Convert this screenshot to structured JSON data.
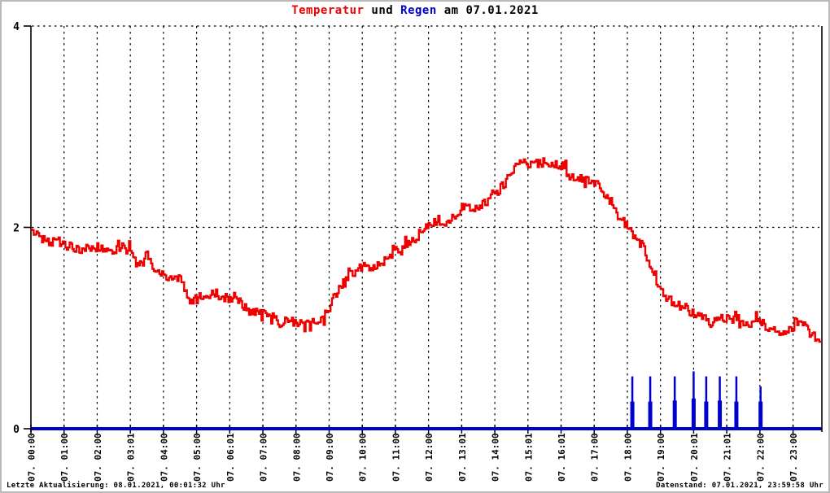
{
  "title": {
    "part_temperature": "Temperatur",
    "part_und": " und ",
    "part_rain": "Regen",
    "part_date": " am 07.01.2021"
  },
  "footer": {
    "last_update": "Letzte Aktualisierung: 08.01.2021, 00:01:32 Uhr",
    "data_timestamp": "Datenstand: 07.01.2021, 23:59:58 Uhr"
  },
  "colors": {
    "temperature": "#ee0000",
    "rain": "#0000cc",
    "axis": "#000000",
    "background": "#ffffff",
    "frame": "#b9b9b9"
  },
  "chart_data": {
    "type": "line+bar",
    "title": "Temperatur und Regen am 07.01.2021",
    "xlabel": "",
    "ylabel": "",
    "ylim": [
      0,
      4
    ],
    "y_ticks": [
      0,
      2,
      4
    ],
    "x_span_hours": 23.87,
    "grid": "vertical dotted hourly lines; horizontal dotted lines at y=2 and y=4",
    "legend_position": "none",
    "x_tick_labels": [
      "07. 00:00",
      "07. 01:00",
      "07. 02:00",
      "07. 03:01",
      "07. 04:00",
      "07. 05:00",
      "07. 06:01",
      "07. 07:00",
      "07. 08:00",
      "07. 09:00",
      "07. 10:00",
      "07. 11:00",
      "07. 12:00",
      "07. 13:01",
      "07. 14:00",
      "07. 15:01",
      "07. 16:01",
      "07. 17:00",
      "07. 18:00",
      "07. 19:00",
      "07. 20:01",
      "07. 21:01",
      "07. 22:00",
      "07. 23:00"
    ],
    "jitter_amplitude": 0.045,
    "series": [
      {
        "name": "Temperatur",
        "type": "line",
        "color": "#ee0000",
        "x_step_minutes": 15,
        "values": [
          1.98,
          1.9,
          1.85,
          1.87,
          1.83,
          1.8,
          1.78,
          1.8,
          1.8,
          1.78,
          1.76,
          1.8,
          1.76,
          1.6,
          1.72,
          1.58,
          1.52,
          1.5,
          1.48,
          1.28,
          1.27,
          1.28,
          1.36,
          1.3,
          1.27,
          1.27,
          1.18,
          1.15,
          1.16,
          1.14,
          1.04,
          1.07,
          1.05,
          1.04,
          1.06,
          1.08,
          1.2,
          1.38,
          1.5,
          1.55,
          1.62,
          1.58,
          1.62,
          1.68,
          1.76,
          1.8,
          1.86,
          1.94,
          2.02,
          2.05,
          2.02,
          2.1,
          2.2,
          2.18,
          2.2,
          2.25,
          2.33,
          2.42,
          2.55,
          2.62,
          2.63,
          2.63,
          2.65,
          2.63,
          2.62,
          2.52,
          2.5,
          2.48,
          2.45,
          2.35,
          2.25,
          2.12,
          2.0,
          1.9,
          1.78,
          1.55,
          1.38,
          1.28,
          1.25,
          1.2,
          1.13,
          1.1,
          1.05,
          1.08,
          1.1,
          1.12,
          1.02,
          1.05,
          1.08,
          1.0,
          0.98,
          0.95,
          1.0,
          1.05,
          0.95,
          0.9
        ]
      },
      {
        "name": "Regen",
        "type": "impulses",
        "color": "#0000cc",
        "baseline": 0,
        "spikes": [
          {
            "hour": 18.15,
            "peak": 0.52,
            "base": 0.27
          },
          {
            "hour": 18.69,
            "peak": 0.52,
            "base": 0.27
          },
          {
            "hour": 19.43,
            "peak": 0.52,
            "base": 0.28
          },
          {
            "hour": 20.0,
            "peak": 0.57,
            "base": 0.3
          },
          {
            "hour": 20.38,
            "peak": 0.52,
            "base": 0.27
          },
          {
            "hour": 20.79,
            "peak": 0.52,
            "base": 0.28
          },
          {
            "hour": 21.29,
            "peak": 0.52,
            "base": 0.27
          },
          {
            "hour": 22.02,
            "peak": 0.42,
            "base": 0.27
          }
        ]
      }
    ]
  }
}
